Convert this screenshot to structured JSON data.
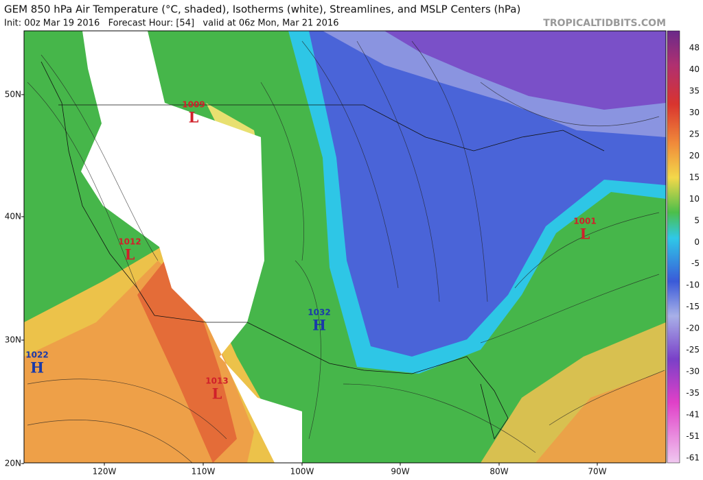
{
  "header": {
    "title": "GEM 850 hPa Air Temperature (°C, shaded), Isotherms (white), Streamlines, and MSLP Centers (hPa)",
    "subtitle": "Init: 00z Mar 19 2016   Forecast Hour: [54]   valid at 06z Mon, Mar 21 2016",
    "credit": "TROPICALTIDBITS.COM"
  },
  "lat_labels": [
    "50N",
    "40N",
    "30N",
    "20N"
  ],
  "lon_labels": [
    "120W",
    "110W",
    "100W",
    "90W",
    "80W",
    "70W"
  ],
  "colorbar": {
    "labels": [
      "48",
      "40",
      "35",
      "30",
      "25",
      "20",
      "15",
      "10",
      "5",
      "0",
      "-5",
      "-10",
      "-15",
      "-20",
      "-25",
      "-30",
      "-35",
      "-41",
      "-51",
      "-61"
    ]
  },
  "centers": [
    {
      "pressure": "1009",
      "letter": "L"
    },
    {
      "pressure": "1012",
      "letter": "L"
    },
    {
      "pressure": "1001",
      "letter": "L"
    },
    {
      "pressure": "1013",
      "letter": "L"
    },
    {
      "pressure": "1032",
      "letter": "H"
    },
    {
      "pressure": "1022",
      "letter": "H"
    }
  ]
}
